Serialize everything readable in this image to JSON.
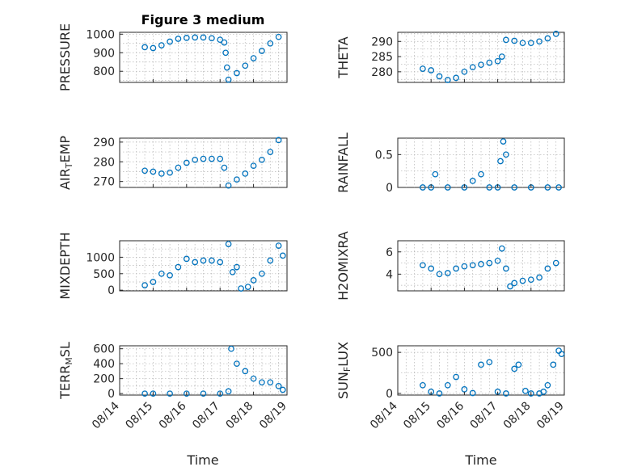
{
  "figure": {
    "title": "Figure 3 medium",
    "xlabel": "Time",
    "marker_color": "#0072bd"
  },
  "chart_data": [
    {
      "type": "scatter",
      "ylabel": "PRESSURE",
      "xlim": [
        "08/14",
        "08/19"
      ],
      "xticks": [
        "08/14",
        "08/15",
        "08/16",
        "08/17",
        "08/18",
        "08/19"
      ],
      "ylim": [
        740,
        1010
      ],
      "yticks": [
        800,
        900,
        1000
      ],
      "grid": true,
      "x": [
        "08/14 18:00",
        "08/15 00:00",
        "08/15 06:00",
        "08/15 12:00",
        "08/15 18:00",
        "08/16 00:00",
        "08/16 06:00",
        "08/16 12:00",
        "08/16 18:00",
        "08/17 00:00",
        "08/17 03:00",
        "08/17 04:00",
        "08/17 05:00",
        "08/17 06:00",
        "08/17 12:00",
        "08/17 18:00",
        "08/18 00:00",
        "08/18 06:00",
        "08/18 12:00",
        "08/18 18:00"
      ],
      "y": [
        930,
        925,
        940,
        960,
        975,
        980,
        982,
        982,
        978,
        970,
        955,
        900,
        820,
        755,
        790,
        830,
        870,
        910,
        950,
        985
      ]
    },
    {
      "type": "scatter",
      "ylabel": "THETA",
      "xlim": [
        "08/14",
        "08/19"
      ],
      "xticks": [
        "08/14",
        "08/15",
        "08/16",
        "08/17",
        "08/18",
        "08/19"
      ],
      "ylim": [
        276.5,
        293
      ],
      "yticks": [
        280,
        285,
        290
      ],
      "grid": true,
      "x": [
        "08/14 18:00",
        "08/15 00:00",
        "08/15 06:00",
        "08/15 12:00",
        "08/15 18:00",
        "08/16 00:00",
        "08/16 06:00",
        "08/16 12:00",
        "08/16 18:00",
        "08/17 00:00",
        "08/17 03:00",
        "08/17 06:00",
        "08/17 12:00",
        "08/17 18:00",
        "08/18 00:00",
        "08/18 06:00",
        "08/18 12:00",
        "08/18 18:00"
      ],
      "y": [
        281,
        280.5,
        278.5,
        277.3,
        278,
        280,
        281.5,
        282.3,
        283,
        283.5,
        285,
        290.5,
        290.2,
        289.5,
        289.5,
        290,
        291,
        292.5
      ]
    },
    {
      "type": "scatter",
      "ylabel": "AIR_TEMP",
      "xlim": [
        "08/14",
        "08/19"
      ],
      "xticks": [
        "08/14",
        "08/15",
        "08/16",
        "08/17",
        "08/18",
        "08/19"
      ],
      "ylim": [
        267,
        292
      ],
      "yticks": [
        270,
        280,
        290
      ],
      "grid": true,
      "x": [
        "08/14 18:00",
        "08/15 00:00",
        "08/15 06:00",
        "08/15 12:00",
        "08/15 18:00",
        "08/16 00:00",
        "08/16 06:00",
        "08/16 12:00",
        "08/16 18:00",
        "08/17 00:00",
        "08/17 03:00",
        "08/17 06:00",
        "08/17 12:00",
        "08/17 18:00",
        "08/18 00:00",
        "08/18 06:00",
        "08/18 12:00",
        "08/18 18:00"
      ],
      "y": [
        275.5,
        275,
        274,
        274.5,
        277,
        279.5,
        281,
        281.5,
        281.5,
        281.5,
        277,
        268,
        271,
        274,
        278,
        281,
        285,
        291
      ]
    },
    {
      "type": "scatter",
      "ylabel": "RAINFALL",
      "xlim": [
        "08/14",
        "08/19"
      ],
      "xticks": [
        "08/14",
        "08/15",
        "08/16",
        "08/17",
        "08/18",
        "08/19"
      ],
      "ylim": [
        0,
        0.75
      ],
      "yticks": [
        0,
        0.5
      ],
      "grid": true,
      "x": [
        "08/14 18:00",
        "08/15 00:00",
        "08/15 03:00",
        "08/15 12:00",
        "08/16 00:00",
        "08/16 06:00",
        "08/16 12:00",
        "08/16 18:00",
        "08/17 00:00",
        "08/17 02:00",
        "08/17 04:00",
        "08/17 06:00",
        "08/17 12:00",
        "08/18 00:00",
        "08/18 12:00",
        "08/18 20:00"
      ],
      "y": [
        0,
        0,
        0.2,
        0,
        0,
        0.1,
        0.2,
        0,
        0,
        0.4,
        0.7,
        0.5,
        0,
        0,
        0,
        0
      ]
    },
    {
      "type": "scatter",
      "ylabel": "MIXDEPTH",
      "xlim": [
        "08/14",
        "08/19"
      ],
      "xticks": [
        "08/14",
        "08/15",
        "08/16",
        "08/17",
        "08/18",
        "08/19"
      ],
      "ylim": [
        -20,
        1500
      ],
      "yticks": [
        0,
        500,
        1000
      ],
      "grid": true,
      "x": [
        "08/14 18:00",
        "08/15 00:00",
        "08/15 06:00",
        "08/15 12:00",
        "08/15 18:00",
        "08/16 00:00",
        "08/16 06:00",
        "08/16 12:00",
        "08/16 18:00",
        "08/17 00:00",
        "08/17 06:00",
        "08/17 09:00",
        "08/17 12:00",
        "08/17 15:00",
        "08/17 20:00",
        "08/18 00:00",
        "08/18 06:00",
        "08/18 12:00",
        "08/18 18:00",
        "08/18 21:00"
      ],
      "y": [
        150,
        250,
        500,
        450,
        700,
        950,
        850,
        900,
        900,
        850,
        1400,
        550,
        700,
        50,
        100,
        300,
        500,
        900,
        1350,
        1050
      ]
    },
    {
      "type": "scatter",
      "ylabel": "H2OMIXRA",
      "xlim": [
        "08/14",
        "08/19"
      ],
      "xticks": [
        "08/14",
        "08/15",
        "08/16",
        "08/17",
        "08/18",
        "08/19"
      ],
      "ylim": [
        2.5,
        7
      ],
      "yticks": [
        4,
        6
      ],
      "grid": true,
      "x": [
        "08/14 18:00",
        "08/15 00:00",
        "08/15 06:00",
        "08/15 12:00",
        "08/15 18:00",
        "08/16 00:00",
        "08/16 06:00",
        "08/16 12:00",
        "08/16 18:00",
        "08/17 00:00",
        "08/17 03:00",
        "08/17 06:00",
        "08/17 09:00",
        "08/17 12:00",
        "08/17 18:00",
        "08/18 00:00",
        "08/18 06:00",
        "08/18 12:00",
        "08/18 18:00"
      ],
      "y": [
        4.8,
        4.5,
        4,
        4.1,
        4.5,
        4.7,
        4.8,
        4.9,
        5,
        5.2,
        6.3,
        4.5,
        2.9,
        3.2,
        3.4,
        3.5,
        3.7,
        4.5,
        5
      ]
    },
    {
      "type": "scatter",
      "ylabel": "TERR_MSL",
      "xlim": [
        "08/14",
        "08/19"
      ],
      "xticks": [
        "08/14",
        "08/15",
        "08/16",
        "08/17",
        "08/18",
        "08/19"
      ],
      "ylim": [
        -20,
        640
      ],
      "yticks": [
        0,
        200,
        400,
        600
      ],
      "grid": true,
      "x": [
        "08/14 18:00",
        "08/15 00:00",
        "08/15 12:00",
        "08/16 00:00",
        "08/16 12:00",
        "08/17 00:00",
        "08/17 06:00",
        "08/17 08:00",
        "08/17 12:00",
        "08/17 18:00",
        "08/18 00:00",
        "08/18 06:00",
        "08/18 12:00",
        "08/18 18:00",
        "08/18 21:00"
      ],
      "y": [
        0,
        0,
        0,
        0,
        0,
        0,
        30,
        600,
        400,
        300,
        200,
        150,
        150,
        100,
        50
      ]
    },
    {
      "type": "scatter",
      "ylabel": "SUN_FLUX",
      "xlim": [
        "08/14",
        "08/19"
      ],
      "xticks": [
        "08/14",
        "08/15",
        "08/16",
        "08/17",
        "08/18",
        "08/19"
      ],
      "ylim": [
        -20,
        580
      ],
      "yticks": [
        0,
        500
      ],
      "grid": true,
      "x": [
        "08/14 18:00",
        "08/15 00:00",
        "08/15 06:00",
        "08/15 12:00",
        "08/15 18:00",
        "08/16 00:00",
        "08/16 06:00",
        "08/16 12:00",
        "08/16 18:00",
        "08/17 00:00",
        "08/17 06:00",
        "08/17 12:00",
        "08/17 15:00",
        "08/17 20:00",
        "08/18 00:00",
        "08/18 06:00",
        "08/18 09:00",
        "08/18 12:00",
        "08/18 16:00",
        "08/18 20:00",
        "08/18 22:00"
      ],
      "y": [
        100,
        20,
        0,
        100,
        200,
        50,
        5,
        350,
        380,
        20,
        0,
        300,
        350,
        30,
        0,
        0,
        20,
        100,
        350,
        520,
        480
      ]
    }
  ]
}
